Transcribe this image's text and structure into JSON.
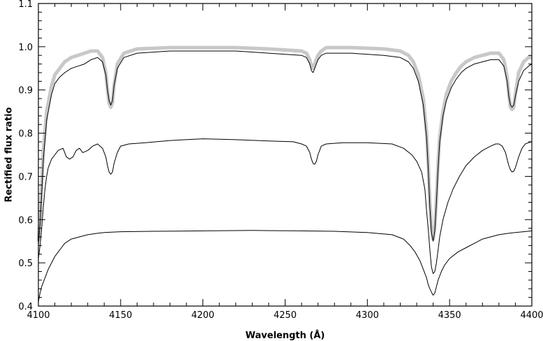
{
  "chart_data": {
    "type": "line",
    "title": "",
    "xlabel": "Wavelength (Å)",
    "ylabel": "Rectified flux ratio",
    "xlim": [
      4100,
      4400
    ],
    "ylim": [
      0.4,
      1.1
    ],
    "grid": false,
    "legend": "none",
    "x_ticks": [
      4100,
      4150,
      4200,
      4250,
      4300,
      4350,
      4400
    ],
    "x_tick_labels": [
      "4100",
      "4150",
      "4200",
      "4250",
      "4300",
      "4350",
      "4400"
    ],
    "y_ticks": [
      0.4,
      0.5,
      0.6,
      0.7,
      0.8,
      0.9,
      1.0,
      1.1
    ],
    "y_tick_labels": [
      "0.4",
      "0.5",
      "0.6",
      "0.7",
      "0.8",
      "0.9",
      "1.0",
      "1.1"
    ],
    "series": [
      {
        "style": "thick-gray",
        "color": "#c8c8c8",
        "x": [
          4100,
          4101,
          4102,
          4103,
          4105,
          4108,
          4110,
          4113,
          4116,
          4120,
          4124,
          4128,
          4132,
          4136,
          4139,
          4141,
          4142,
          4143,
          4144,
          4145,
          4146,
          4148,
          4152,
          4160,
          4180,
          4200,
          4220,
          4240,
          4260,
          4263,
          4265,
          4266,
          4267,
          4268,
          4270,
          4272,
          4275,
          4290,
          4310,
          4320,
          4325,
          4328,
          4331,
          4334,
          4336,
          4337,
          4338,
          4339,
          4340,
          4341,
          4342,
          4343,
          4344,
          4346,
          4348,
          4351,
          4354,
          4357,
          4360,
          4365,
          4370,
          4375,
          4380,
          4383,
          4385,
          4386,
          4387,
          4388,
          4389,
          4390,
          4392,
          4395,
          4398,
          4400
        ],
        "y": [
          0.55,
          0.6,
          0.68,
          0.76,
          0.85,
          0.91,
          0.935,
          0.95,
          0.965,
          0.975,
          0.98,
          0.985,
          0.99,
          0.99,
          0.975,
          0.94,
          0.9,
          0.87,
          0.86,
          0.87,
          0.91,
          0.96,
          0.985,
          0.995,
          0.998,
          0.998,
          0.998,
          0.995,
          0.99,
          0.985,
          0.97,
          0.955,
          0.95,
          0.96,
          0.98,
          0.99,
          0.998,
          0.998,
          0.995,
          0.99,
          0.98,
          0.965,
          0.935,
          0.88,
          0.8,
          0.73,
          0.64,
          0.58,
          0.555,
          0.58,
          0.65,
          0.73,
          0.79,
          0.85,
          0.89,
          0.92,
          0.94,
          0.955,
          0.965,
          0.975,
          0.98,
          0.985,
          0.985,
          0.97,
          0.93,
          0.89,
          0.86,
          0.855,
          0.86,
          0.89,
          0.94,
          0.965,
          0.975,
          0.975
        ]
      },
      {
        "style": "thin-black",
        "color": "#000000",
        "x": [
          4100,
          4101,
          4102,
          4103,
          4105,
          4108,
          4110,
          4113,
          4116,
          4120,
          4124,
          4128,
          4132,
          4136,
          4139,
          4141,
          4142,
          4143,
          4144,
          4145,
          4146,
          4148,
          4152,
          4160,
          4180,
          4200,
          4220,
          4240,
          4260,
          4263,
          4265,
          4266,
          4267,
          4268,
          4270,
          4272,
          4275,
          4290,
          4310,
          4320,
          4325,
          4328,
          4331,
          4334,
          4336,
          4337,
          4338,
          4339,
          4340,
          4341,
          4342,
          4343,
          4344,
          4346,
          4348,
          4351,
          4354,
          4357,
          4360,
          4365,
          4370,
          4375,
          4380,
          4383,
          4385,
          4386,
          4387,
          4388,
          4389,
          4390,
          4392,
          4395,
          4398,
          4400
        ],
        "y": [
          0.54,
          0.59,
          0.66,
          0.74,
          0.83,
          0.89,
          0.915,
          0.93,
          0.94,
          0.95,
          0.955,
          0.96,
          0.97,
          0.975,
          0.965,
          0.935,
          0.9,
          0.875,
          0.865,
          0.875,
          0.91,
          0.95,
          0.975,
          0.985,
          0.99,
          0.99,
          0.99,
          0.985,
          0.98,
          0.975,
          0.96,
          0.945,
          0.94,
          0.95,
          0.97,
          0.98,
          0.985,
          0.985,
          0.98,
          0.975,
          0.965,
          0.95,
          0.92,
          0.865,
          0.79,
          0.72,
          0.63,
          0.57,
          0.55,
          0.575,
          0.64,
          0.72,
          0.78,
          0.84,
          0.875,
          0.905,
          0.925,
          0.94,
          0.95,
          0.96,
          0.965,
          0.97,
          0.97,
          0.955,
          0.92,
          0.885,
          0.865,
          0.86,
          0.865,
          0.885,
          0.92,
          0.945,
          0.955,
          0.96
        ]
      },
      {
        "style": "thin-black",
        "color": "#000000",
        "x": [
          4100,
          4101,
          4102,
          4103,
          4104,
          4105,
          4106,
          4108,
          4110,
          4112,
          4115,
          4117,
          4119,
          4121,
          4123,
          4125,
          4127,
          4130,
          4133,
          4136,
          4139,
          4141,
          4142,
          4143,
          4144,
          4145,
          4146,
          4148,
          4150,
          4155,
          4165,
          4180,
          4200,
          4220,
          4240,
          4255,
          4260,
          4263,
          4265,
          4266,
          4267,
          4268,
          4269,
          4270,
          4272,
          4275,
          4285,
          4300,
          4315,
          4322,
          4327,
          4330,
          4333,
          4335,
          4336,
          4337,
          4338,
          4339,
          4340,
          4341,
          4342,
          4343,
          4344,
          4346,
          4349,
          4352,
          4356,
          4360,
          4365,
          4370,
          4375,
          4378,
          4380,
          4382,
          4384,
          4385,
          4386,
          4387,
          4388,
          4389,
          4390,
          4392,
          4394,
          4396,
          4398,
          4400
        ],
        "y": [
          0.51,
          0.54,
          0.58,
          0.63,
          0.67,
          0.7,
          0.72,
          0.74,
          0.75,
          0.76,
          0.765,
          0.745,
          0.74,
          0.745,
          0.76,
          0.765,
          0.755,
          0.76,
          0.77,
          0.775,
          0.765,
          0.745,
          0.725,
          0.71,
          0.705,
          0.71,
          0.73,
          0.755,
          0.77,
          0.775,
          0.778,
          0.783,
          0.787,
          0.785,
          0.782,
          0.78,
          0.775,
          0.77,
          0.755,
          0.74,
          0.73,
          0.728,
          0.735,
          0.75,
          0.77,
          0.775,
          0.778,
          0.778,
          0.775,
          0.765,
          0.75,
          0.735,
          0.71,
          0.67,
          0.62,
          0.58,
          0.53,
          0.49,
          0.475,
          0.48,
          0.5,
          0.53,
          0.56,
          0.6,
          0.64,
          0.67,
          0.7,
          0.725,
          0.745,
          0.76,
          0.77,
          0.775,
          0.775,
          0.77,
          0.755,
          0.74,
          0.725,
          0.715,
          0.71,
          0.712,
          0.72,
          0.745,
          0.765,
          0.775,
          0.778,
          0.78
        ]
      },
      {
        "style": "thin-black",
        "color": "#000000",
        "x": [
          4100,
          4101,
          4102,
          4104,
          4106,
          4108,
          4110,
          4112,
          4114,
          4116,
          4118,
          4120,
          4125,
          4130,
          4135,
          4140,
          4150,
          4170,
          4200,
          4230,
          4260,
          4280,
          4300,
          4315,
          4322,
          4326,
          4329,
          4332,
          4334,
          4336,
          4337,
          4338,
          4339,
          4340,
          4341,
          4342,
          4343,
          4345,
          4347,
          4350,
          4355,
          4360,
          4365,
          4370,
          4375,
          4380,
          4385,
          4390,
          4395,
          4400
        ],
        "y": [
          0.41,
          0.43,
          0.445,
          0.465,
          0.485,
          0.5,
          0.515,
          0.525,
          0.535,
          0.545,
          0.55,
          0.555,
          0.56,
          0.565,
          0.568,
          0.57,
          0.572,
          0.573,
          0.574,
          0.575,
          0.574,
          0.573,
          0.57,
          0.565,
          0.555,
          0.54,
          0.525,
          0.505,
          0.485,
          0.465,
          0.45,
          0.44,
          0.432,
          0.425,
          0.43,
          0.445,
          0.46,
          0.48,
          0.495,
          0.51,
          0.525,
          0.535,
          0.545,
          0.555,
          0.56,
          0.565,
          0.568,
          0.57,
          0.572,
          0.574
        ]
      }
    ]
  }
}
